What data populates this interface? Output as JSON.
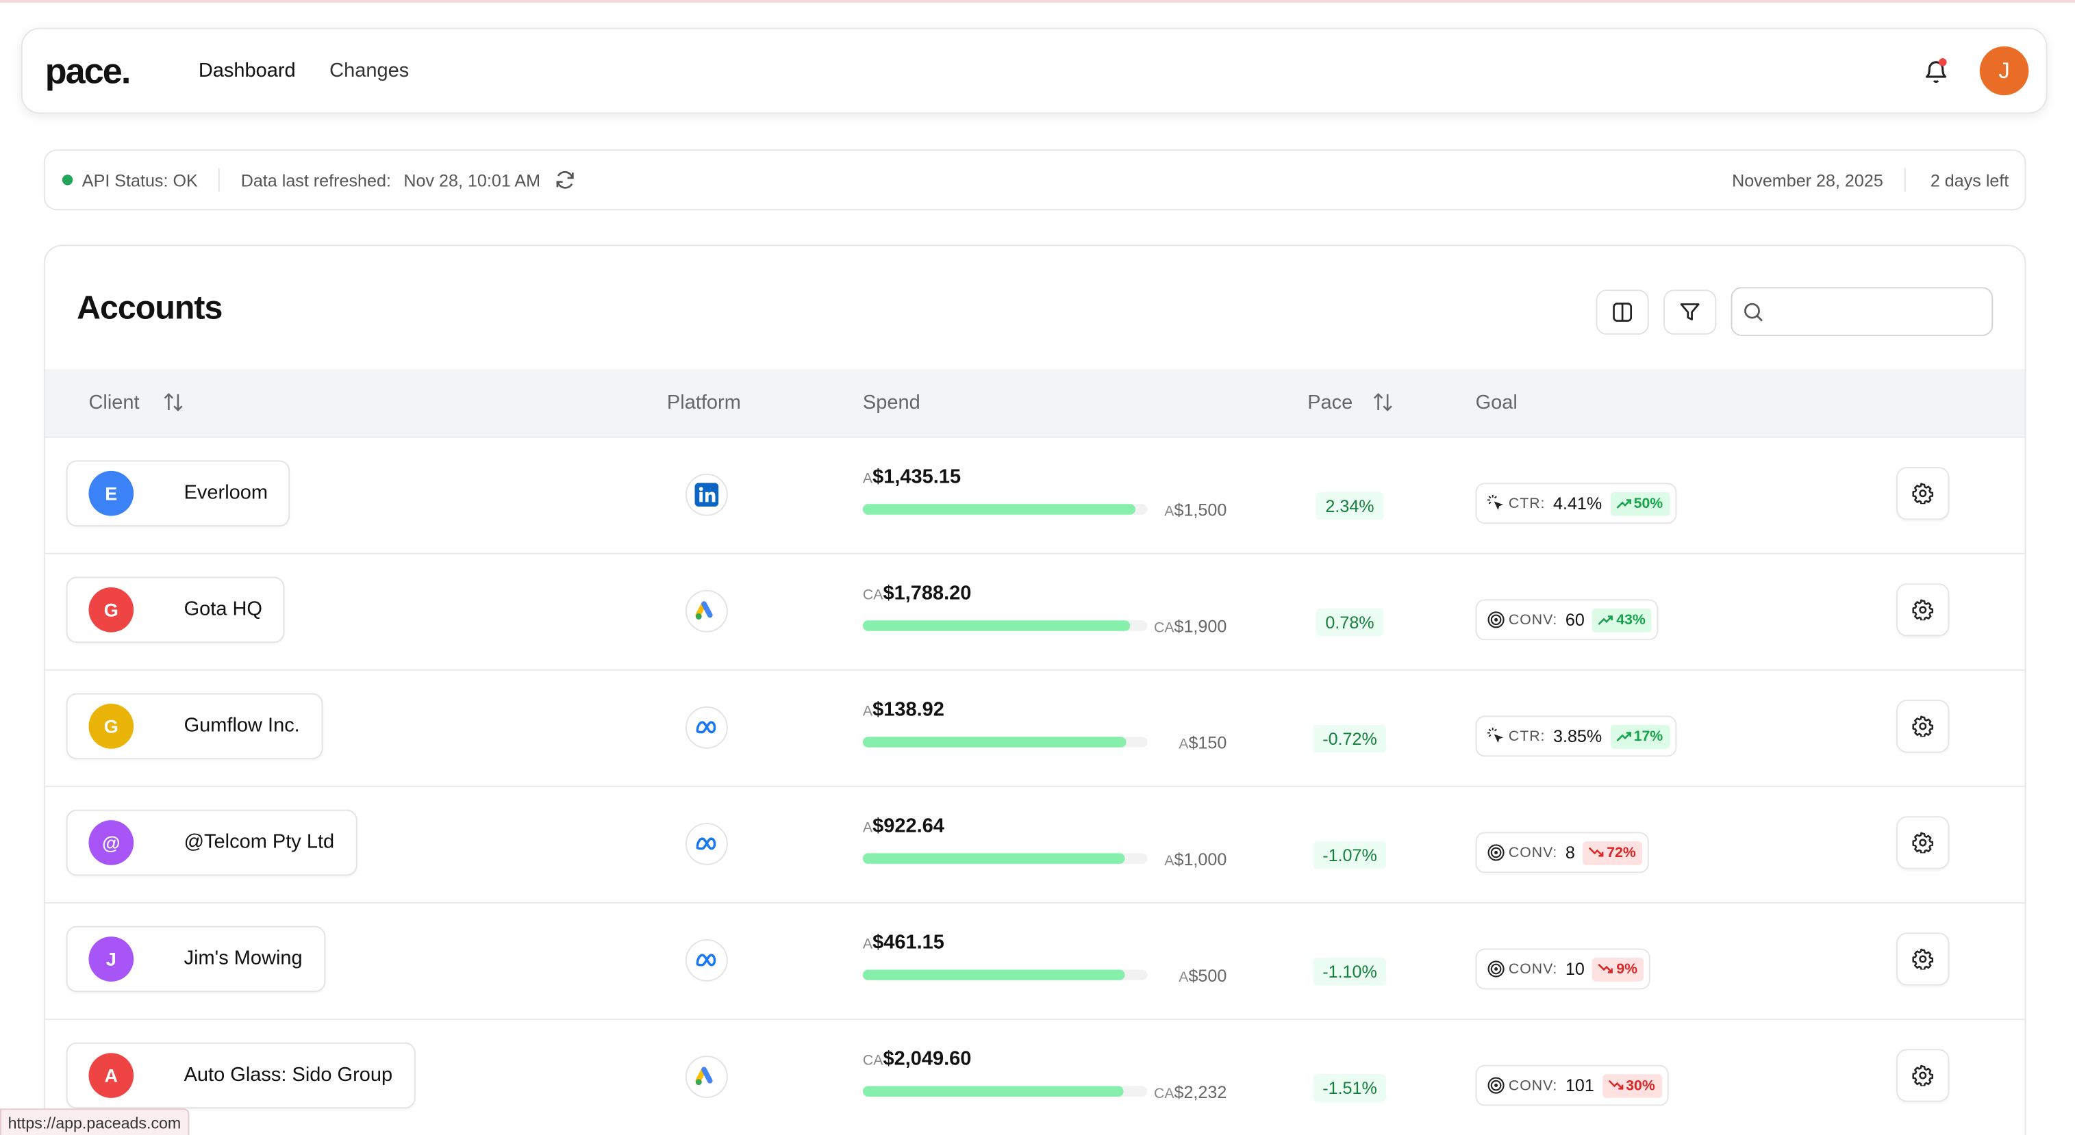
{
  "header": {
    "logo": "pace.",
    "nav": [
      "Dashboard",
      "Changes"
    ],
    "avatar": "J"
  },
  "status_bar": {
    "api_status": "API Status: OK",
    "refreshed_label": "Data last refreshed:",
    "refreshed_time": "Nov 28, 10:01 AM",
    "date": "November 28, 2025",
    "days_left": "2 days left"
  },
  "accounts": {
    "title": "Accounts",
    "columns": [
      "Client",
      "Platform",
      "Spend",
      "Pace",
      "Goal"
    ],
    "rows": [
      {
        "initial": "E",
        "client": "Everloom",
        "color": "#3b82f6",
        "spend_prefix": "A",
        "spend": "$1,435.15",
        "budget_prefix": "A",
        "budget": "$1,500",
        "pace": "2.34%",
        "goal_label": "CTR:",
        "goal_value": "4.41%",
        "change": "50%",
        "change_color": "#16a34a"
      },
      {
        "initial": "G",
        "client": "Gota HQ",
        "color": "#ef4444",
        "spend_prefix": "CA",
        "spend": "$1,788.20",
        "budget_prefix": "CA",
        "budget": "$1,900",
        "pace": "0.78%",
        "goal_label": "CONV:",
        "goal_value": "60",
        "change": "43%",
        "change_color": "#16a34a"
      },
      {
        "initial": "G",
        "client": "Gumflow Inc.",
        "color": "#eab308",
        "spend_prefix": "A",
        "spend": "$138.92",
        "budget_prefix": "A",
        "budget": "$150",
        "pace": "-0.72%",
        "goal_label": "CTR:",
        "goal_value": "3.85%",
        "change": "17%",
        "change_color": "#16a34a"
      },
      {
        "initial": "@",
        "client": "@Telcom Pty Ltd",
        "color": "#a855f7",
        "spend_prefix": "A",
        "spend": "$922.64",
        "budget_prefix": "A",
        "budget": "$1,000",
        "pace": "-1.07%",
        "goal_label": "CONV:",
        "goal_value": "8",
        "change": "72%",
        "change_color": "#dc2626"
      },
      {
        "initial": "J",
        "client": "Jim's Mowing",
        "color": "#a855f7",
        "spend_prefix": "A",
        "spend": "$461.15",
        "budget_prefix": "A",
        "budget": "$500",
        "pace": "-1.10%",
        "goal_label": "CONV:",
        "goal_value": "10",
        "change": "9%",
        "change_color": "#dc2626"
      },
      {
        "initial": "A",
        "client": "Auto Glass: Sido Group",
        "color": "#ef4444",
        "spend_prefix": "CA",
        "spend": "$2,049.60",
        "budget_prefix": "CA",
        "budget": "$2,232",
        "pace": "-1.51%",
        "goal_label": "CONV:",
        "goal_value": "101",
        "change": "30%",
        "change_color": "#dc2626"
      }
    ]
  },
  "status_url": "https://app.paceads.com"
}
